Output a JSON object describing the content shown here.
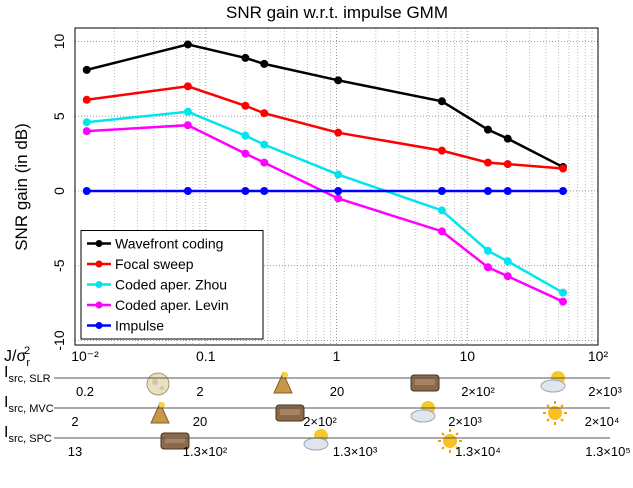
{
  "chart_data": {
    "type": "line",
    "title": "SNR gain w.r.t. impulse GMM",
    "y_label": "SNR gain (in dB)",
    "xlog": true,
    "grid": true,
    "legend_position": "lower-left",
    "xlim": [
      0.01,
      100
    ],
    "ylim": [
      -10.3,
      10.9
    ],
    "xticks": [
      {
        "value": 0.01,
        "label": "10⁻²"
      },
      0.1,
      1,
      10,
      {
        "value": 100,
        "label": "10²"
      }
    ],
    "yticks": [
      -10,
      -5,
      0,
      5,
      10
    ],
    "x": [
      0.0123,
      0.073,
      0.201,
      0.28,
      1.03,
      6.4,
      14.4,
      20.4,
      54
    ],
    "series": [
      {
        "name": "Wavefront coding",
        "color": "#000000",
        "values": [
          8.1,
          9.8,
          8.9,
          8.5,
          7.4,
          6.0,
          4.1,
          3.5,
          1.6
        ]
      },
      {
        "name": "Focal sweep",
        "color": "#ff0000",
        "values": [
          6.1,
          7.0,
          5.7,
          5.2,
          3.9,
          2.7,
          1.9,
          1.8,
          1.5
        ]
      },
      {
        "name": "Coded aper. Zhou",
        "color": "#00e5ee",
        "values": [
          4.6,
          5.3,
          3.7,
          3.1,
          1.1,
          -1.3,
          -4.0,
          -4.7,
          -6.8
        ]
      },
      {
        "name": "Coded aper. Levin",
        "color": "#ff00ff",
        "values": [
          4.0,
          4.4,
          2.5,
          1.9,
          -0.5,
          -2.7,
          -5.1,
          -5.7,
          -7.4
        ]
      },
      {
        "name": "Impulse",
        "color": "#0000ff",
        "values": [
          0,
          0,
          0,
          0,
          0,
          0,
          0,
          0,
          0
        ]
      }
    ],
    "x_label": {
      "text": "J/σ",
      "sub": "r",
      "sup": "2"
    },
    "scales": [
      {
        "label": {
          "text": "I",
          "sub": "src, SLR"
        },
        "ticks": [
          "0.2",
          "2",
          "20",
          "2×10²",
          "2×10³"
        ]
      },
      {
        "label": {
          "text": "I",
          "sub": "src, MVC"
        },
        "ticks": [
          "2",
          "20",
          "2×10²",
          "2×10³",
          "2×10⁴"
        ]
      },
      {
        "label": {
          "text": "I",
          "sub": "src, SPC"
        },
        "ticks": [
          "13",
          "1.3×10²",
          "1.3×10³",
          "1.3×10⁴",
          "1.3×10⁵"
        ]
      }
    ]
  }
}
